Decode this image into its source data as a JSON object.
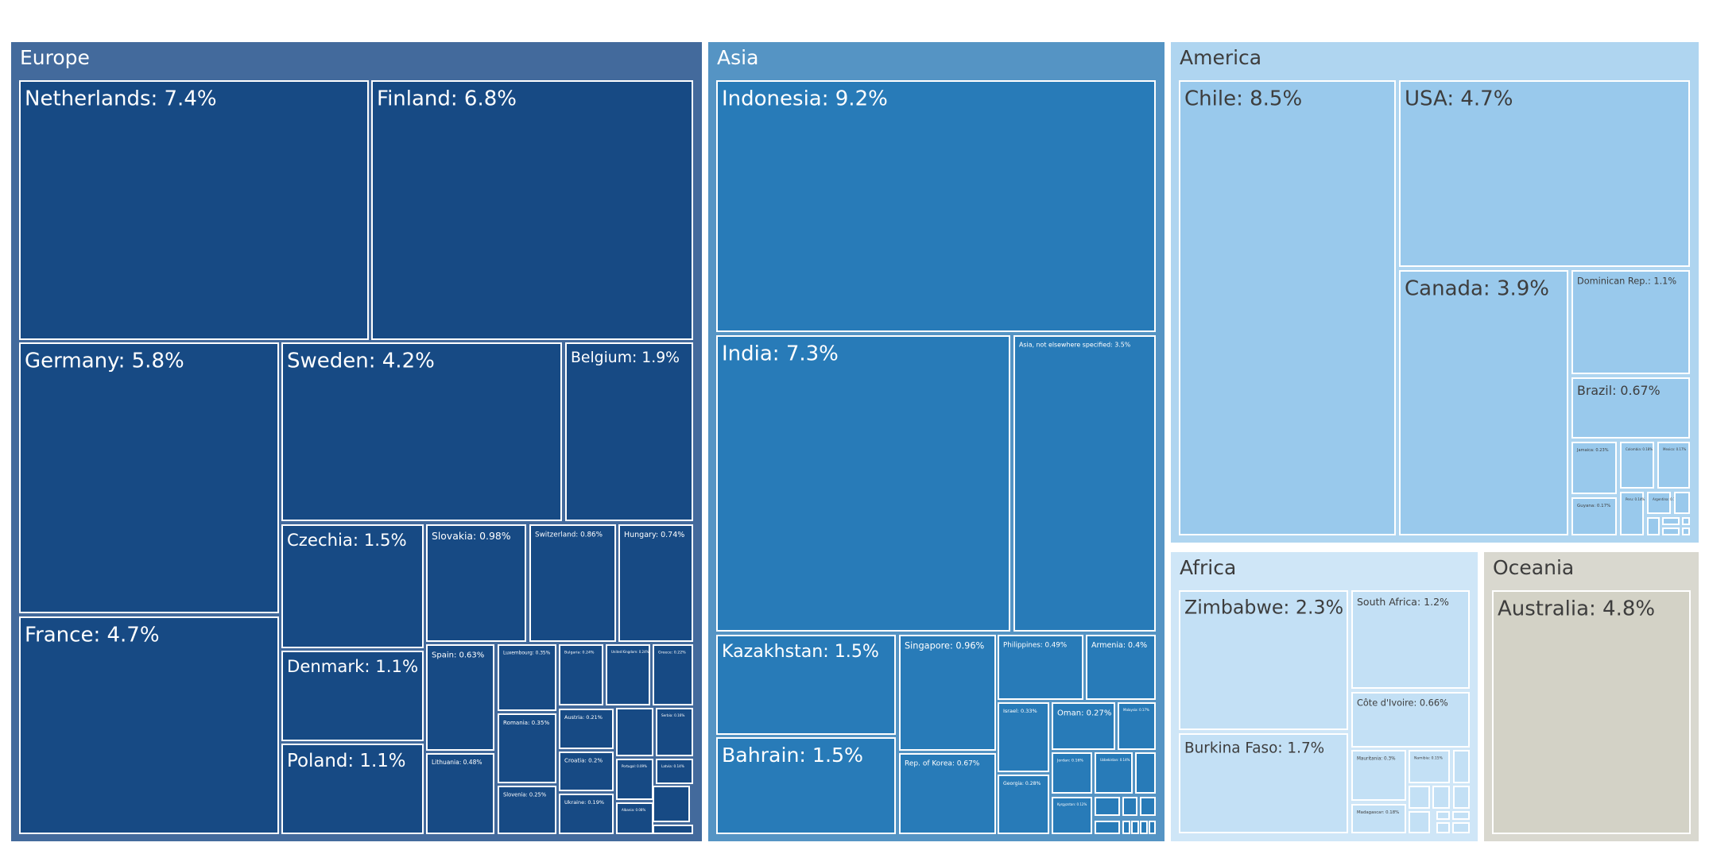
{
  "chart_data": {
    "type": "treemap",
    "title": "",
    "groups": [
      {
        "name": "Europe",
        "color": "#436a9c",
        "leaf_color": "#174a84",
        "text_color": "#ffffff",
        "leaves": [
          {
            "label": "Netherlands: 7.4%",
            "value": 7.4
          },
          {
            "label": "Finland: 6.8%",
            "value": 6.8
          },
          {
            "label": "Germany: 5.8%",
            "value": 5.8
          },
          {
            "label": "Sweden: 4.2%",
            "value": 4.2
          },
          {
            "label": "Belgium: 1.9%",
            "value": 1.9
          },
          {
            "label": "France: 4.7%",
            "value": 4.7
          },
          {
            "label": "Czechia: 1.5%",
            "value": 1.5
          },
          {
            "label": "Slovakia: 0.98%",
            "value": 0.98
          },
          {
            "label": "Switzerland: 0.86%",
            "value": 0.86
          },
          {
            "label": "Hungary: 0.74%",
            "value": 0.74
          },
          {
            "label": "Denmark: 1.1%",
            "value": 1.1
          },
          {
            "label": "Poland: 1.1%",
            "value": 1.1
          },
          {
            "label": "Spain: 0.63%",
            "value": 0.63
          },
          {
            "label": "Luxembourg: 0.35%",
            "value": 0.35
          },
          {
            "label": "Bulgaria: 0.24%",
            "value": 0.24
          },
          {
            "label": "United Kingdom: 0.24%",
            "value": 0.24
          },
          {
            "label": "Greece: 0.22%",
            "value": 0.22
          },
          {
            "label": "Romania: 0.35%",
            "value": 0.35
          },
          {
            "label": "Austria: 0.21%",
            "value": 0.21
          },
          {
            "label": "Croatia: 0.2%",
            "value": 0.2
          },
          {
            "label": "Ukraine: 0.19%",
            "value": 0.19
          },
          {
            "label": "Lithuania: 0.48%",
            "value": 0.48
          },
          {
            "label": "Slovenia: 0.25%",
            "value": 0.25
          },
          {
            "label": "",
            "value": 0.18
          },
          {
            "label": "Serbia: 0.16%",
            "value": 0.16
          },
          {
            "label": "Portugal: 0.09%",
            "value": 0.09
          },
          {
            "label": "Latvia: 0.14%",
            "value": 0.14
          },
          {
            "label": "Albania: 0.08%",
            "value": 0.08
          },
          {
            "label": "",
            "value": 0.06
          },
          {
            "label": "",
            "value": 0.05
          },
          {
            "label": "",
            "value": 0.02
          },
          {
            "label": "",
            "value": 0.01
          }
        ]
      },
      {
        "name": "Asia",
        "color": "#5594c4",
        "leaf_color": "#287bb8",
        "text_color": "#ffffff",
        "leaves": [
          {
            "label": "Indonesia: 9.2%",
            "value": 9.2
          },
          {
            "label": "India: 7.3%",
            "value": 7.3
          },
          {
            "label": "Asia, not elsewhere specified: 3.5%",
            "value": 3.5
          },
          {
            "label": "Kazakhstan: 1.5%",
            "value": 1.5
          },
          {
            "label": "Singapore: 0.96%",
            "value": 0.96
          },
          {
            "label": "Philippines: 0.49%",
            "value": 0.49
          },
          {
            "label": "Armenia: 0.4%",
            "value": 0.4
          },
          {
            "label": "Bahrain: 1.5%",
            "value": 1.5
          },
          {
            "label": "Rep. of Korea: 0.67%",
            "value": 0.67
          },
          {
            "label": "Israel: 0.33%",
            "value": 0.33
          },
          {
            "label": "Oman: 0.27%",
            "value": 0.27
          },
          {
            "label": "Malaysia: 0.17%",
            "value": 0.17
          },
          {
            "label": "Georgia: 0.28%",
            "value": 0.28
          },
          {
            "label": "Jordan: 0.16%",
            "value": 0.16
          },
          {
            "label": "Uzbekistan: 0.14%",
            "value": 0.14
          },
          {
            "label": "",
            "value": 0.1
          },
          {
            "label": "Kyrgyzstan: 0.12%",
            "value": 0.12
          },
          {
            "label": "",
            "value": 0.06
          },
          {
            "label": "",
            "value": 0.05
          },
          {
            "label": "",
            "value": 0.04
          },
          {
            "label": "",
            "value": 0.03
          },
          {
            "label": "",
            "value": 0.02
          },
          {
            "label": "",
            "value": 0.02
          },
          {
            "label": "",
            "value": 0.02
          },
          {
            "label": "",
            "value": 0.02
          }
        ]
      },
      {
        "name": "America",
        "color": "#afd5f0",
        "leaf_color": "#99c9ec",
        "text_color": "#3d3d3d",
        "leaves": [
          {
            "label": "Chile: 8.5%",
            "value": 8.5
          },
          {
            "label": "USA: 4.7%",
            "value": 4.7
          },
          {
            "label": "Canada: 3.9%",
            "value": 3.9
          },
          {
            "label": "Dominican Rep.: 1.1%",
            "value": 1.1
          },
          {
            "label": "Brazil: 0.67%",
            "value": 0.67
          },
          {
            "label": "Jamaica: 0.23%",
            "value": 0.23
          },
          {
            "label": "Colombia: 0.18%",
            "value": 0.18
          },
          {
            "label": "Mexico: 0.17%",
            "value": 0.17
          },
          {
            "label": "Guyana: 0.17%",
            "value": 0.17
          },
          {
            "label": "Peru: 0.14%",
            "value": 0.14
          },
          {
            "label": "Argentina: 0.1%",
            "value": 0.1
          },
          {
            "label": "",
            "value": 0.08
          },
          {
            "label": "",
            "value": 0.05
          },
          {
            "label": "",
            "value": 0.04
          },
          {
            "label": "",
            "value": 0.03
          },
          {
            "label": "",
            "value": 0.03
          },
          {
            "label": "",
            "value": 0.02
          }
        ]
      },
      {
        "name": "Africa",
        "color": "#cfe6f7",
        "leaf_color": "#c3e0f5",
        "text_color": "#3d3d3d",
        "leaves": [
          {
            "label": "Zimbabwe: 2.3%",
            "value": 2.3
          },
          {
            "label": "South Africa: 1.2%",
            "value": 1.2
          },
          {
            "label": "Burkina Faso: 1.7%",
            "value": 1.7
          },
          {
            "label": "Côte d'Ivoire: 0.66%",
            "value": 0.66
          },
          {
            "label": "Mauritania: 0.3%",
            "value": 0.3
          },
          {
            "label": "Namibia: 0.15%",
            "value": 0.15
          },
          {
            "label": "Madagascar: 0.18%",
            "value": 0.18
          },
          {
            "label": "",
            "value": 0.1
          },
          {
            "label": "",
            "value": 0.08
          },
          {
            "label": "",
            "value": 0.06
          },
          {
            "label": "",
            "value": 0.05
          },
          {
            "label": "",
            "value": 0.04
          },
          {
            "label": "",
            "value": 0.03
          },
          {
            "label": "",
            "value": 0.03
          },
          {
            "label": "",
            "value": 0.02
          },
          {
            "label": "",
            "value": 0.02
          }
        ]
      },
      {
        "name": "Oceania",
        "color": "#d9d8cf",
        "leaf_color": "#d3d2c6",
        "text_color": "#3d3d3d",
        "leaves": [
          {
            "label": "Australia: 4.8%",
            "value": 4.8
          }
        ]
      }
    ]
  }
}
